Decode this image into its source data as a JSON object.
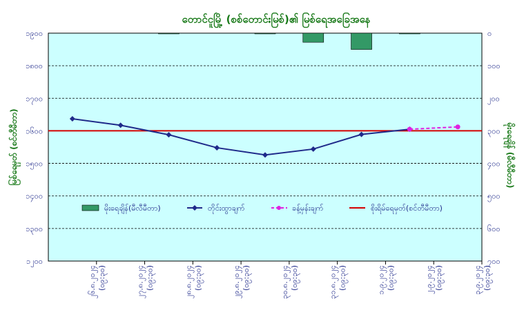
{
  "chart_data": {
    "type": "line",
    "title": "တောင်ငူမြို့ (စစ်တောင်းမြစ်)၏ မြစ်ရေအခြေအနေ",
    "ylabel_left": "မြစ်ရေမှတ် (စင်တီမီတာ)",
    "ylabel_right": "မိုးရေချိန် (မီလီမီတာ)",
    "categories": [
      [
        "၂၆.၈.၂၀၂၄",
        "(၀၉:၃၀)"
      ],
      [
        "၂၇.၈.၂၀၂၄",
        "(၀၉:၃၀)"
      ],
      [
        "၂၈.၈.၂၀၂၄",
        "(၀၉:၃၀)"
      ],
      [
        "၂၉.၈.၂၀၂၄",
        "(၀၉:၃၀)"
      ],
      [
        "၃၀.၈.၂၀၂၄",
        "(၀၉:၃၀)"
      ],
      [
        "၃၁.၈.၂၀၂၄",
        "(၀၉:၃၀)"
      ],
      [
        "၁.၉.၂၀၂၄",
        "(၀၉:၃၀)"
      ],
      [
        "၂.၉.၂၀၂၄",
        "(၀၉:၃၀)"
      ],
      [
        "၃.၉.၂၀၂၄",
        "(၀၉:၃၀)"
      ]
    ],
    "left_axis": {
      "min": 1200,
      "max": 1900,
      "ticks": [
        "၁၉၀၀",
        "၁၈၀၀",
        "၁၇၀၀",
        "၁၆၀၀",
        "၁၅၀၀",
        "၁၄၀၀",
        "၁၃၀၀",
        "၁၂၀၀"
      ]
    },
    "right_axis": {
      "min": 0,
      "max": 700,
      "reversed": true,
      "ticks": [
        "၀",
        "၁၀၀",
        "၂၀၀",
        "၃၀၀",
        "၄၀၀",
        "၅၀၀",
        "၆၀၀",
        "၇၀၀"
      ]
    },
    "series": [
      {
        "name": "မိုးရေချိန်(မီလီမီတာ)",
        "kind": "bar",
        "axis": "right",
        "color": "#339966",
        "values": [
          0,
          0,
          2,
          0,
          2,
          28,
          50,
          2,
          0
        ]
      },
      {
        "name": "တိုင်းထွာချက်",
        "kind": "line",
        "axis": "left",
        "color": "#1f2a8a",
        "values": [
          1637,
          1617,
          1588,
          1548,
          1526,
          1544,
          1589,
          1605,
          null
        ]
      },
      {
        "name": "ခန့်မှန်းချက်",
        "kind": "dashed",
        "axis": "left",
        "color": "#e020e0",
        "values": [
          null,
          null,
          null,
          null,
          null,
          null,
          null,
          1605,
          1612
        ]
      },
      {
        "name": "စိုးရိမ်ရေမှတ်(စင်တီမီတာ)",
        "kind": "hline",
        "axis": "left",
        "color": "#d40000",
        "value": 1600
      }
    ],
    "grid": true,
    "legend_position": "inside-lower"
  }
}
